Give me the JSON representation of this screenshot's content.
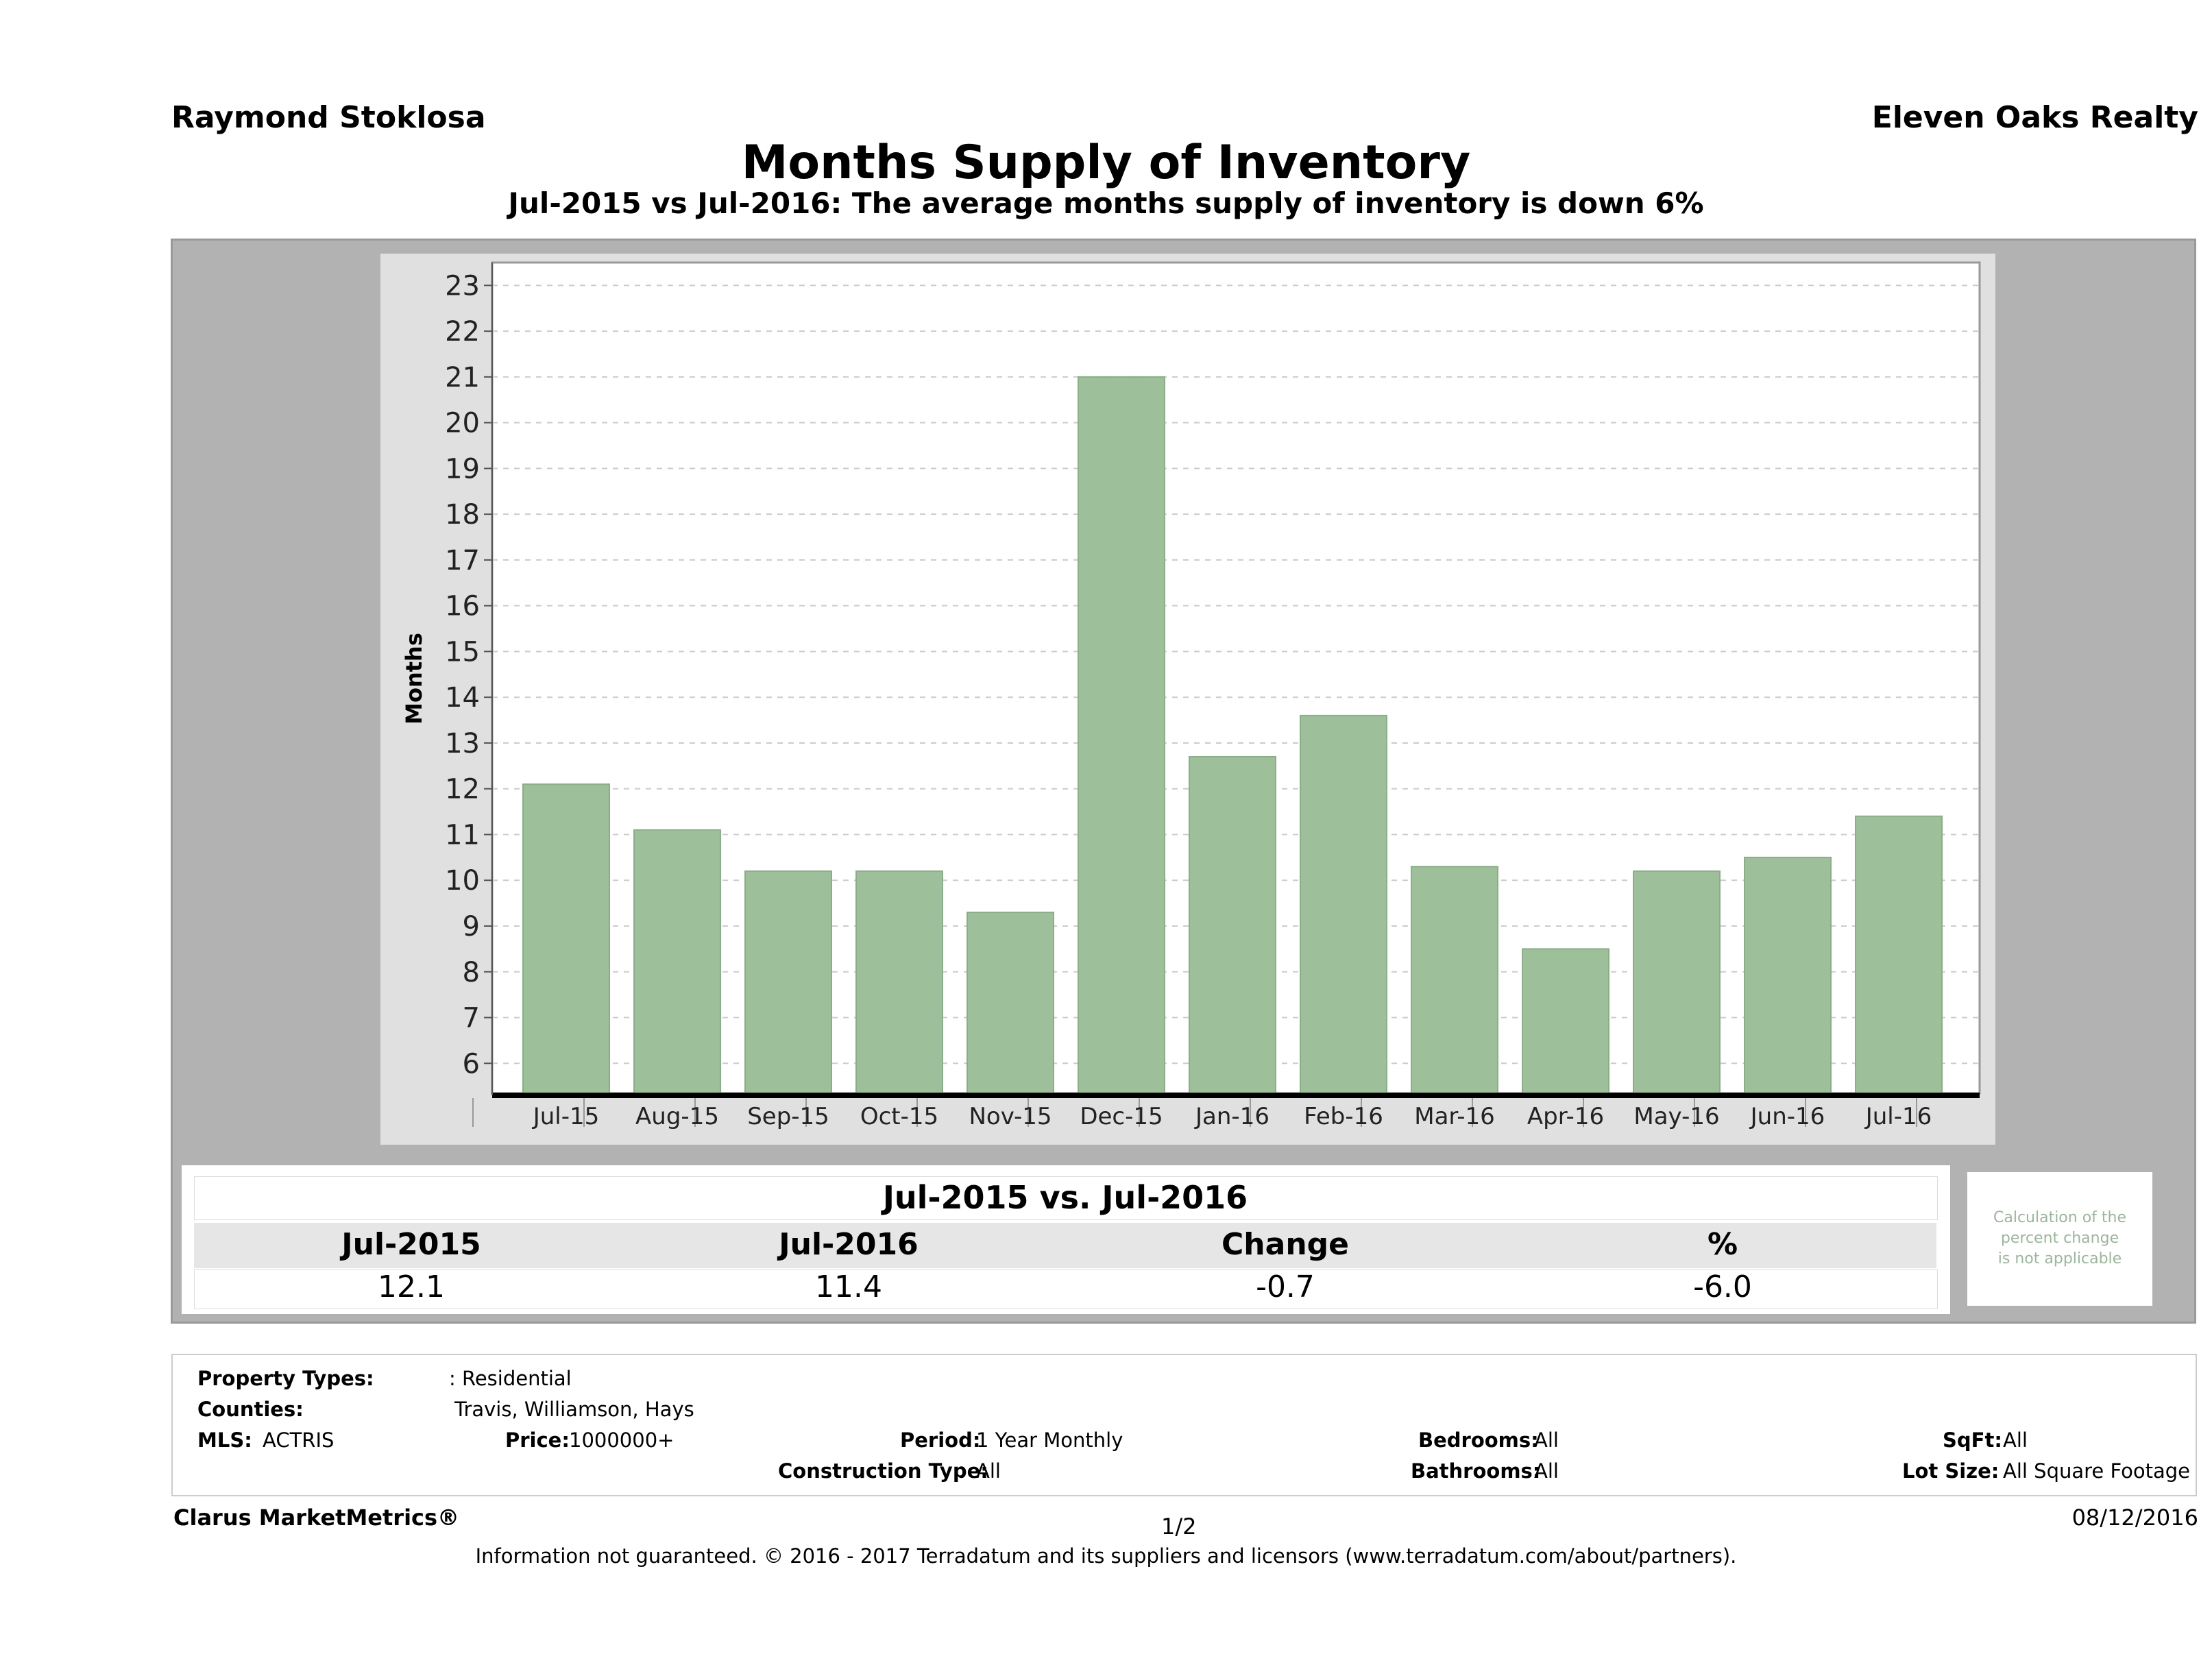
{
  "header": {
    "agent": "Raymond Stoklosa",
    "office": "Eleven Oaks Realty",
    "title": "Months Supply of Inventory",
    "subtitle": "Jul-2015 vs Jul-2016: The average months supply of inventory is down 6%"
  },
  "chart_data": {
    "type": "bar",
    "title": "Months Supply of Inventory",
    "xlabel": "",
    "ylabel": "Months",
    "categories": [
      "Jul-15",
      "Aug-15",
      "Sep-15",
      "Oct-15",
      "Nov-15",
      "Dec-15",
      "Jan-16",
      "Feb-16",
      "Mar-16",
      "Apr-16",
      "May-16",
      "Jun-16",
      "Jul-16"
    ],
    "values": [
      12.1,
      11.1,
      10.2,
      10.2,
      9.3,
      21.0,
      12.7,
      13.6,
      10.3,
      8.5,
      10.2,
      10.5,
      11.4
    ],
    "yticks": [
      6,
      7,
      8,
      9,
      10,
      11,
      12,
      13,
      14,
      15,
      16,
      17,
      18,
      19,
      20,
      21,
      22,
      23
    ],
    "ylim": [
      5.3,
      23.5
    ],
    "grid": true,
    "bar_color": "#9dc09a"
  },
  "comparison": {
    "title": "Jul-2015 vs. Jul-2016",
    "headers": [
      "Jul-2015",
      "Jul-2016",
      "Change",
      "%"
    ],
    "values": [
      "12.1",
      "11.4",
      "-0.7",
      "-6.0"
    ],
    "note_lines": [
      "Calculation of the",
      "percent change",
      "is not applicable"
    ]
  },
  "filters": {
    "property_types_label": "Property Types:",
    "property_types_value": ": Residential",
    "counties_label": "Counties:",
    "counties_value": "Travis, Williamson, Hays",
    "mls_label": "MLS:",
    "mls_value": "ACTRIS",
    "price_label": "Price:",
    "price_value": "1000000+",
    "period_label": "Period:",
    "period_value": "1 Year Monthly",
    "construction_label": "Construction Type:",
    "construction_value": "All",
    "bedrooms_label": "Bedrooms:",
    "bedrooms_value": "All",
    "bathrooms_label": "Bathrooms:",
    "bathrooms_value": "All",
    "sqft_label": "SqFt:",
    "sqft_value": "All",
    "lotsize_label": "Lot Size:",
    "lotsize_value": "All Square Footage"
  },
  "footer": {
    "brand": "Clarus MarketMetrics®",
    "page": "1/2",
    "date": "08/12/2016",
    "disclaimer": "Information not guaranteed. © 2016 - 2017 Terradatum and its suppliers and licensors (www.terradatum.com/about/partners)."
  }
}
